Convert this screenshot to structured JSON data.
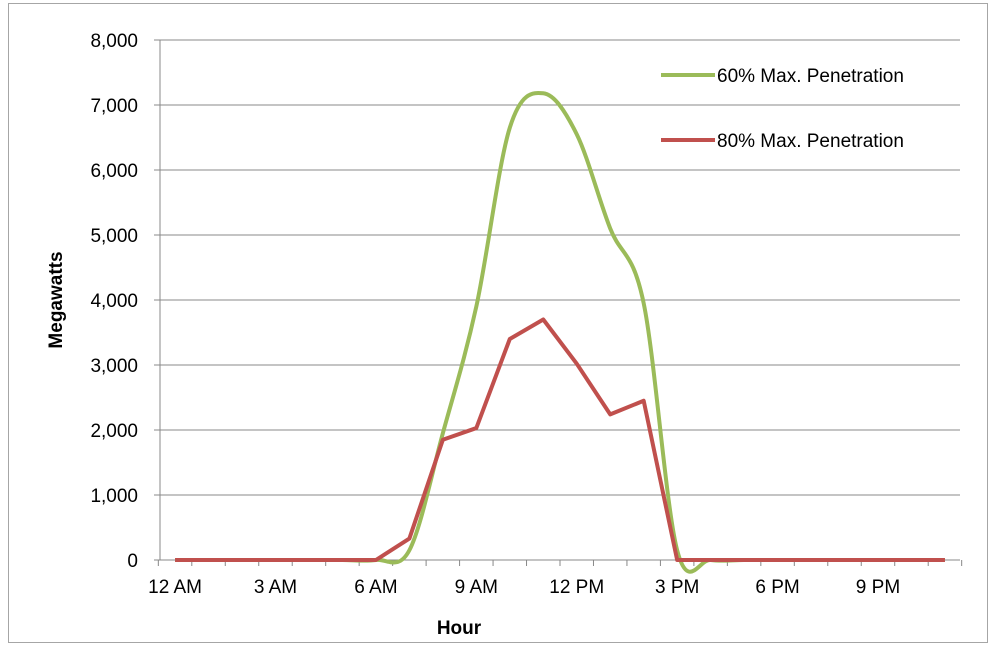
{
  "chart_data": {
    "type": "line",
    "xlabel": "Hour",
    "ylabel": "Megawatts",
    "ylim": [
      0,
      8000
    ],
    "y_ticks": [
      0,
      1000,
      2000,
      3000,
      4000,
      5000,
      6000,
      7000,
      8000
    ],
    "y_tick_labels": [
      "0",
      "1,000",
      "2,000",
      "3,000",
      "4,000",
      "5,000",
      "6,000",
      "7,000",
      "8,000"
    ],
    "x": [
      0,
      1,
      2,
      3,
      4,
      5,
      6,
      7,
      8,
      9,
      10,
      11,
      12,
      13,
      14,
      15,
      16,
      17,
      18,
      19,
      20,
      21,
      22,
      23
    ],
    "x_tick_positions": [
      0,
      3,
      6,
      9,
      12,
      15,
      18,
      21
    ],
    "x_tick_labels": [
      "12 AM",
      "3 AM",
      "6 AM",
      "9 AM",
      "12 PM",
      "3 PM",
      "6 PM",
      "9 PM"
    ],
    "grid": true,
    "legend_position": "top-right",
    "series": [
      {
        "name": "60% Max. Penetration",
        "color": "#9bbb59",
        "smooth": true,
        "values": [
          0,
          0,
          0,
          0,
          0,
          0,
          0,
          150,
          1950,
          3900,
          6650,
          7180,
          6550,
          5100,
          3950,
          150,
          0,
          0,
          0,
          0,
          0,
          0,
          0,
          0
        ]
      },
      {
        "name": "80% Max. Penetration",
        "color": "#c0504d",
        "smooth": false,
        "values": [
          0,
          0,
          0,
          0,
          0,
          0,
          0,
          330,
          1850,
          2030,
          3400,
          3700,
          3020,
          2240,
          2450,
          0,
          0,
          0,
          0,
          0,
          0,
          0,
          0,
          0
        ]
      }
    ]
  }
}
